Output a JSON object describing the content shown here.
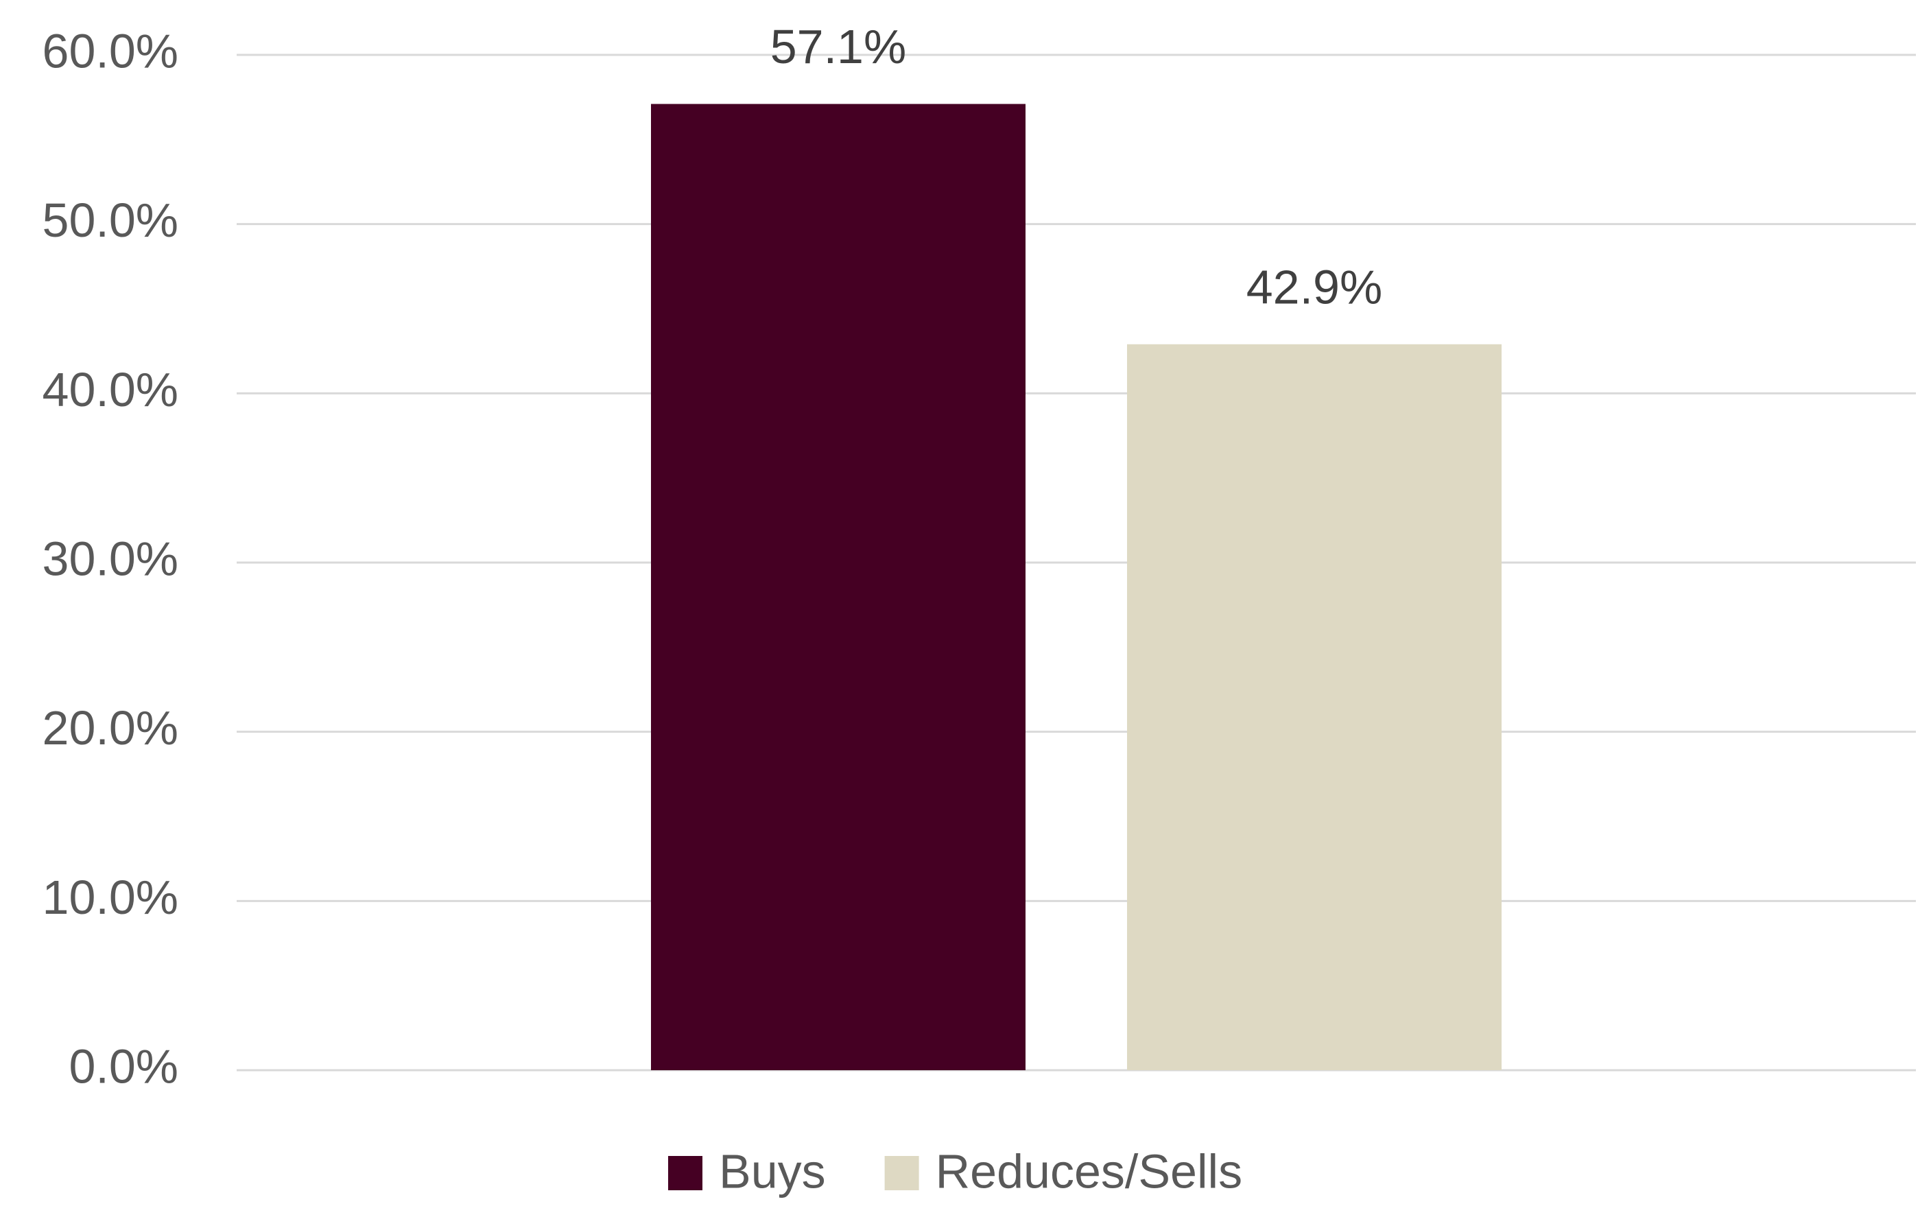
{
  "chart_data": {
    "type": "bar",
    "categories": [
      null
    ],
    "series": [
      {
        "name": "Buys",
        "color": "#450023",
        "values": [
          57.1
        ],
        "value_labels": [
          "57.1%"
        ]
      },
      {
        "name": "Reduces/Sells",
        "color": "#ded9c3",
        "values": [
          42.9
        ],
        "value_labels": [
          "42.9%"
        ]
      }
    ],
    "ylim": [
      0,
      60
    ],
    "yticks": [
      {
        "value": 0,
        "label": "0.0%"
      },
      {
        "value": 10,
        "label": "10.0%"
      },
      {
        "value": 20,
        "label": "20.0%"
      },
      {
        "value": 30,
        "label": "30.0%"
      },
      {
        "value": 40,
        "label": "40.0%"
      },
      {
        "value": 50,
        "label": "50.0%"
      },
      {
        "value": 60,
        "label": "60.0%"
      }
    ],
    "grid": true,
    "legend": "bottom"
  }
}
